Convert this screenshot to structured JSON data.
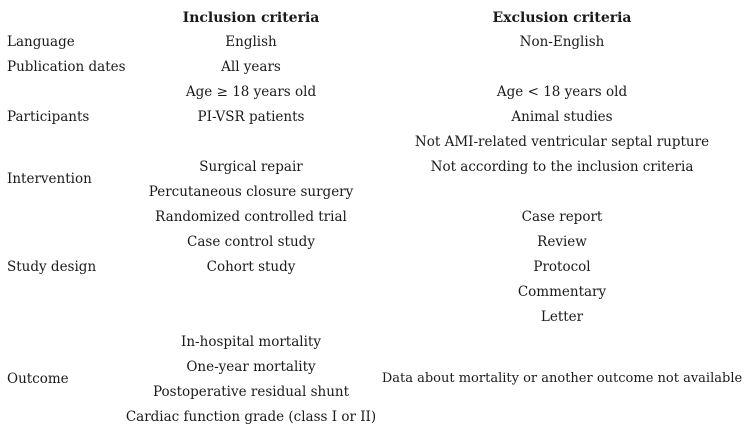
{
  "table": {
    "header_inclusion": "Inclusion criteria",
    "header_exclusion": "Exclusion criteria",
    "rows": [
      {
        "label": "Language",
        "inclusion": [
          "English"
        ],
        "exclusion": [
          "Non-English"
        ]
      },
      {
        "label": "Publication dates",
        "inclusion": [
          "All years"
        ],
        "exclusion": []
      },
      {
        "label": "Participants",
        "inclusion": [
          "Age ≥ 18 years old",
          "PI-VSR patients"
        ],
        "exclusion": [
          "Age < 18 years old",
          "Animal studies",
          "Not AMI-related ventricular septal rupture"
        ]
      },
      {
        "label": "Intervention",
        "inclusion": [
          "Surgical repair",
          "Percutaneous closure surgery"
        ],
        "exclusion": [
          "Not according to the inclusion criteria"
        ]
      },
      {
        "label": "Study design",
        "inclusion": [
          "Randomized controlled trial",
          "Case control study",
          "Cohort study"
        ],
        "exclusion": [
          "Case report",
          "Review",
          "Protocol",
          "Commentary",
          "Letter"
        ]
      },
      {
        "label": "Outcome",
        "inclusion": [
          "In-hospital mortality",
          "One-year mortality",
          "Postoperative residual shunt",
          "Cardiac function grade (class I or II)"
        ],
        "exclusion": [
          "Data about mortality or another outcome not available"
        ]
      }
    ]
  }
}
